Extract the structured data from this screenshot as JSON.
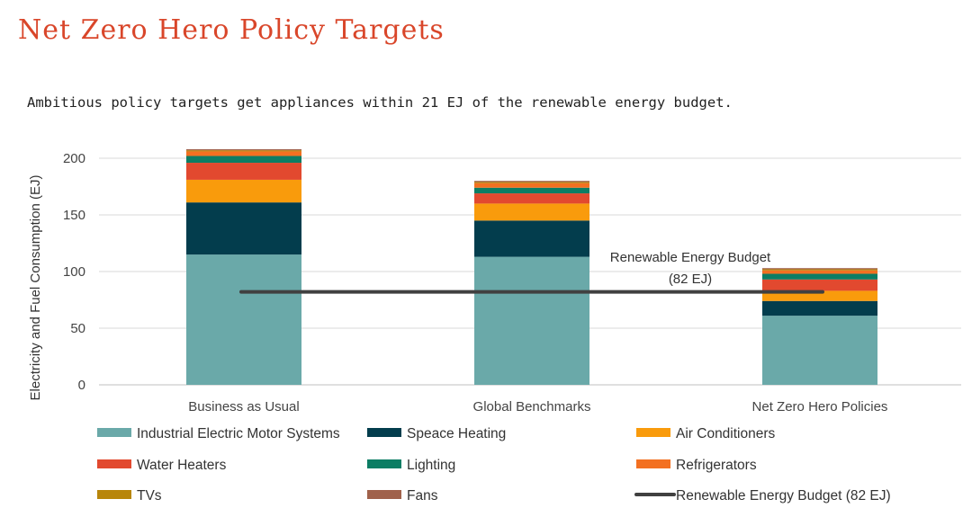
{
  "header": {
    "title": "Net Zero Hero Policy Targets",
    "subtitle": "Ambitious policy targets get appliances within 21 EJ of the renewable energy budget."
  },
  "chart_data": {
    "type": "bar",
    "stacked": true,
    "title": "",
    "xlabel": "",
    "ylabel": "Electricity and Fuel Consumption (EJ)",
    "ylim": [
      0,
      200
    ],
    "yticks": [
      0,
      50,
      100,
      150,
      200
    ],
    "grid": true,
    "legend_position": "bottom",
    "categories": [
      "Business as Usual",
      "Global Benchmarks",
      "Net Zero Hero Policies"
    ],
    "series": [
      {
        "name": "Industrial Electric Motor Systems",
        "color": "#6aa9a9",
        "values": [
          115,
          113,
          61
        ]
      },
      {
        "name": "Speace Heating",
        "color": "#033d4d",
        "values": [
          46,
          32,
          13
        ]
      },
      {
        "name": "Air Conditioners",
        "color": "#f99b0c",
        "values": [
          20,
          15,
          9
        ]
      },
      {
        "name": "Water Heaters",
        "color": "#e2492f",
        "values": [
          15,
          9,
          10
        ]
      },
      {
        "name": "Lighting",
        "color": "#0c7d64",
        "values": [
          6,
          5,
          5
        ]
      },
      {
        "name": "Refrigerators",
        "color": "#f37021",
        "values": [
          4,
          4,
          3
        ]
      },
      {
        "name": "TVs",
        "color": "#b8860b",
        "values": [
          1,
          1,
          1
        ]
      },
      {
        "name": "Fans",
        "color": "#a0614b",
        "values": [
          1,
          1,
          1
        ]
      }
    ],
    "reference_line": {
      "name": "Renewable Energy Budget (82 EJ)",
      "value": 82,
      "color": "#404040",
      "annotation_line1": "Renewable Energy Budget",
      "annotation_line2": "(82 EJ)"
    }
  }
}
